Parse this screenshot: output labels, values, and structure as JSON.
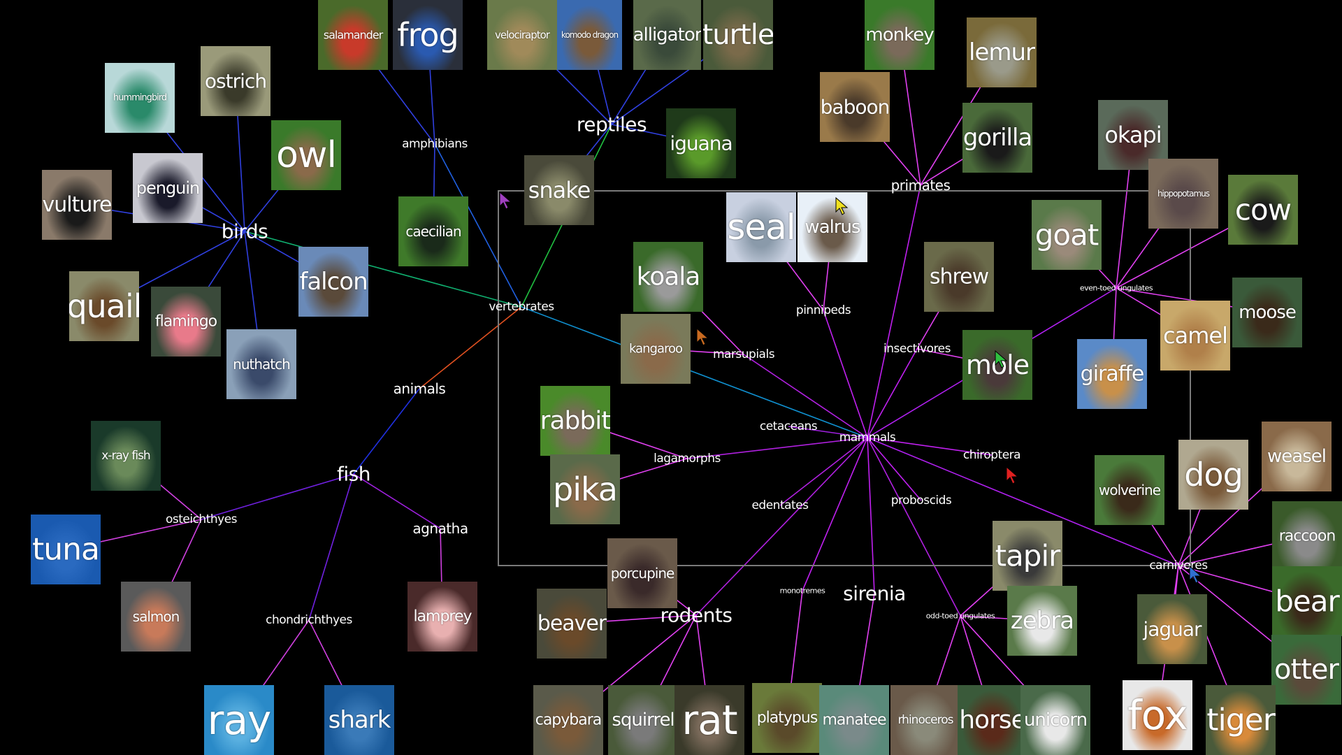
{
  "diagram": {
    "colors": {
      "background": "#000000",
      "label": "#ffffff",
      "frame": "#7a7a7a"
    },
    "labels": [
      {
        "id": "animals",
        "text": "animals",
        "size": "mid"
      },
      {
        "id": "vertebrates",
        "text": "vertebrates",
        "size": "small"
      },
      {
        "id": "birds",
        "text": "birds",
        "size": "major"
      },
      {
        "id": "amphibians",
        "text": "amphibians",
        "size": "small"
      },
      {
        "id": "reptiles",
        "text": "reptiles",
        "size": "major"
      },
      {
        "id": "fish",
        "text": "fish",
        "size": "major"
      },
      {
        "id": "osteichthyes",
        "text": "osteichthyes",
        "size": "small"
      },
      {
        "id": "chondrichthyes",
        "text": "chondrichthyes",
        "size": "small"
      },
      {
        "id": "agnatha",
        "text": "agnatha",
        "size": "mid"
      },
      {
        "id": "mammals",
        "text": "mammals",
        "size": "small"
      },
      {
        "id": "primates",
        "text": "primates",
        "size": "mid"
      },
      {
        "id": "pinnipeds",
        "text": "pinnipeds",
        "size": "small"
      },
      {
        "id": "marsupials",
        "text": "marsupials",
        "size": "small"
      },
      {
        "id": "insectivores",
        "text": "insectivores",
        "size": "small"
      },
      {
        "id": "even-toed",
        "text": "even-toed ungulates",
        "size": "tiny"
      },
      {
        "id": "cetaceans",
        "text": "cetaceans",
        "size": "small"
      },
      {
        "id": "lagamorphs",
        "text": "lagamorphs",
        "size": "small"
      },
      {
        "id": "chiroptera",
        "text": "chiroptera",
        "size": "small"
      },
      {
        "id": "edentates",
        "text": "edentates",
        "size": "small"
      },
      {
        "id": "proboscids",
        "text": "proboscids",
        "size": "small"
      },
      {
        "id": "rodents",
        "text": "rodents",
        "size": "major"
      },
      {
        "id": "monotremes",
        "text": "monotremes",
        "size": "tiny"
      },
      {
        "id": "sirenia",
        "text": "sirenia",
        "size": "major"
      },
      {
        "id": "odd-toed",
        "text": "odd-toed ungulates",
        "size": "tiny"
      },
      {
        "id": "carnivores",
        "text": "carnivores",
        "size": "small"
      }
    ],
    "nodes": [
      {
        "id": "salamander",
        "text": "salamander",
        "bg": "#4a6a2a",
        "fg": "#c83a2a",
        "parent": "amphibians"
      },
      {
        "id": "frog",
        "text": "frog",
        "bg": "#2a2f3a",
        "fg": "#2a5ab0",
        "parent": "amphibians"
      },
      {
        "id": "caecilian",
        "text": "caecilian",
        "bg": "#3f7a2a",
        "fg": "#1a2a1a",
        "parent": "amphibians"
      },
      {
        "id": "velociraptor",
        "text": "velociraptor",
        "bg": "#6a7a4a",
        "fg": "#a08a5a",
        "parent": "reptiles"
      },
      {
        "id": "komodo",
        "text": "komodo dragon",
        "bg": "#3a6ab0",
        "fg": "#7a5a3a",
        "parent": "reptiles"
      },
      {
        "id": "alligator",
        "text": "alligator",
        "bg": "#5a6a4a",
        "fg": "#3a4a3a",
        "parent": "reptiles"
      },
      {
        "id": "turtle",
        "text": "turtle",
        "bg": "#4a5a3a",
        "fg": "#7a6a4a",
        "parent": "reptiles"
      },
      {
        "id": "iguana",
        "text": "iguana",
        "bg": "#1f3a1a",
        "fg": "#5a9a2a",
        "parent": "reptiles"
      },
      {
        "id": "snake",
        "text": "snake",
        "bg": "#4a4a3a",
        "fg": "#8a8a6a",
        "parent": "reptiles"
      },
      {
        "id": "hummingbird",
        "text": "hummingbird",
        "bg": "#b8d8d8",
        "fg": "#2a8a6a",
        "parent": "birds"
      },
      {
        "id": "ostrich",
        "text": "ostrich",
        "bg": "#9a9a7a",
        "fg": "#3a3a2a",
        "parent": "birds"
      },
      {
        "id": "owl",
        "text": "owl",
        "bg": "#3a7a2a",
        "fg": "#8a6a4a",
        "parent": "birds"
      },
      {
        "id": "vulture",
        "text": "vulture",
        "bg": "#8a7a6a",
        "fg": "#1a1a1a",
        "parent": "birds"
      },
      {
        "id": "penguin",
        "text": "penguin",
        "bg": "#c8c8d0",
        "fg": "#1a1a2a",
        "parent": "birds"
      },
      {
        "id": "falcon",
        "text": "falcon",
        "bg": "#6a8ab8",
        "fg": "#5a4a3a",
        "parent": "birds"
      },
      {
        "id": "quail",
        "text": "quail",
        "bg": "#8a8a6a",
        "fg": "#6a4a2a",
        "parent": "birds"
      },
      {
        "id": "flamingo",
        "text": "flamingo",
        "bg": "#3a4a3a",
        "fg": "#e87a8a",
        "parent": "birds"
      },
      {
        "id": "nuthatch",
        "text": "nuthatch",
        "bg": "#8aa0b8",
        "fg": "#3a4a6a",
        "parent": "birds"
      },
      {
        "id": "xray",
        "text": "x-ray fish",
        "bg": "#1a3a2a",
        "fg": "#6a8a5a",
        "parent": "osteichthyes"
      },
      {
        "id": "tuna",
        "text": "tuna",
        "bg": "#1a5ab0",
        "fg": "#2a6ac0",
        "parent": "osteichthyes"
      },
      {
        "id": "salmon",
        "text": "salmon",
        "bg": "#5a5a5a",
        "fg": "#c87a5a",
        "parent": "osteichthyes"
      },
      {
        "id": "lamprey",
        "text": "lamprey",
        "bg": "#4a2a2a",
        "fg": "#e8b0b0",
        "parent": "agnatha"
      },
      {
        "id": "ray",
        "text": "ray",
        "bg": "#2a8ac8",
        "fg": "#5ab0e0",
        "parent": "chondrichthyes"
      },
      {
        "id": "shark",
        "text": "shark",
        "bg": "#1a5a9a",
        "fg": "#3a7ab8",
        "parent": "chondrichthyes"
      },
      {
        "id": "monkey",
        "text": "monkey",
        "bg": "#3a7a2a",
        "fg": "#7a6a5a",
        "parent": "primates"
      },
      {
        "id": "lemur",
        "text": "lemur",
        "bg": "#7a6a3a",
        "fg": "#9a9a8a",
        "parent": "primates"
      },
      {
        "id": "baboon",
        "text": "baboon",
        "bg": "#9a7a4a",
        "fg": "#4a3a2a",
        "parent": "primates"
      },
      {
        "id": "gorilla",
        "text": "gorilla",
        "bg": "#4a6a3a",
        "fg": "#1a1a1a",
        "parent": "primates"
      },
      {
        "id": "seal",
        "text": "seal",
        "bg": "#c8d0e0",
        "fg": "#8a9aaa",
        "parent": "pinnipeds"
      },
      {
        "id": "walrus",
        "text": "walrus",
        "bg": "#e8f0f8",
        "fg": "#6a5a4a",
        "parent": "pinnipeds"
      },
      {
        "id": "koala",
        "text": "koala",
        "bg": "#3a6a2a",
        "fg": "#9a9a9a",
        "parent": "marsupials"
      },
      {
        "id": "kangaroo",
        "text": "kangaroo",
        "bg": "#7a7a5a",
        "fg": "#8a6a4a",
        "parent": "marsupials"
      },
      {
        "id": "shrew",
        "text": "shrew",
        "bg": "#6a6a4a",
        "fg": "#4a3a2a",
        "parent": "insectivores"
      },
      {
        "id": "mole",
        "text": "mole",
        "bg": "#3a6a2a",
        "fg": "#4a3a3a",
        "parent": "insectivores"
      },
      {
        "id": "okapi",
        "text": "okapi",
        "bg": "#5a6a5a",
        "fg": "#4a2a2a",
        "parent": "even-toed"
      },
      {
        "id": "hippo",
        "text": "hippopotamus",
        "bg": "#7a6a5a",
        "fg": "#5a4a4a",
        "parent": "even-toed"
      },
      {
        "id": "cow",
        "text": "cow",
        "bg": "#5a7a3a",
        "fg": "#1a1a1a",
        "parent": "even-toed"
      },
      {
        "id": "goat",
        "text": "goat",
        "bg": "#5a7a4a",
        "fg": "#9a8a7a",
        "parent": "even-toed"
      },
      {
        "id": "moose",
        "text": "moose",
        "bg": "#3a5a3a",
        "fg": "#3a2a1a",
        "parent": "even-toed"
      },
      {
        "id": "camel",
        "text": "camel",
        "bg": "#c8a86a",
        "fg": "#b0804a",
        "parent": "even-toed"
      },
      {
        "id": "giraffe",
        "text": "giraffe",
        "bg": "#5a8ac8",
        "fg": "#c8904a",
        "parent": "even-toed"
      },
      {
        "id": "rabbit",
        "text": "rabbit",
        "bg": "#4a8a2a",
        "fg": "#7a6a5a",
        "parent": "lagamorphs"
      },
      {
        "id": "pika",
        "text": "pika",
        "bg": "#5a6a4a",
        "fg": "#8a6a4a",
        "parent": "lagamorphs"
      },
      {
        "id": "porcupine",
        "text": "porcupine",
        "bg": "#6a5a4a",
        "fg": "#3a2a2a",
        "parent": "rodents"
      },
      {
        "id": "beaver",
        "text": "beaver",
        "bg": "#4a4a3a",
        "fg": "#6a4a2a",
        "parent": "rodents"
      },
      {
        "id": "capybara",
        "text": "capybara",
        "bg": "#5a5a4a",
        "fg": "#7a5a3a",
        "parent": "rodents"
      },
      {
        "id": "squirrel",
        "text": "squirrel",
        "bg": "#4a5a3a",
        "fg": "#7a7a7a",
        "parent": "rodents"
      },
      {
        "id": "rat",
        "text": "rat",
        "bg": "#3a3a2a",
        "fg": "#7a6a5a",
        "parent": "rodents"
      },
      {
        "id": "platypus",
        "text": "platypus",
        "bg": "#6a7a3a",
        "fg": "#5a4a2a",
        "parent": "monotremes"
      },
      {
        "id": "manatee",
        "text": "manatee",
        "bg": "#5a8a7a",
        "fg": "#7a8a8a",
        "parent": "sirenia"
      },
      {
        "id": "rhinoceros",
        "text": "rhinoceros",
        "bg": "#6a5a4a",
        "fg": "#8a8a7a",
        "parent": "odd-toed"
      },
      {
        "id": "horse",
        "text": "horse",
        "bg": "#3a5a3a",
        "fg": "#5a2a1a",
        "parent": "odd-toed"
      },
      {
        "id": "unicorn",
        "text": "unicorn",
        "bg": "#4a6a4a",
        "fg": "#e8e8e8",
        "parent": "odd-toed"
      },
      {
        "id": "tapir",
        "text": "tapir",
        "bg": "#8a8a6a",
        "fg": "#3a3a3a",
        "parent": "odd-toed"
      },
      {
        "id": "zebra",
        "text": "zebra",
        "bg": "#5a7a4a",
        "fg": "#e8e8e8",
        "parent": "odd-toed"
      },
      {
        "id": "wolverine",
        "text": "wolverine",
        "bg": "#4a7a3a",
        "fg": "#3a2a1a",
        "parent": "carnivores"
      },
      {
        "id": "dog",
        "text": "dog",
        "bg": "#b0a890",
        "fg": "#7a5a3a",
        "parent": "carnivores"
      },
      {
        "id": "weasel",
        "text": "weasel",
        "bg": "#8a6a4a",
        "fg": "#c8b89a",
        "parent": "carnivores"
      },
      {
        "id": "raccoon",
        "text": "raccoon",
        "bg": "#3a5a2a",
        "fg": "#8a8a8a",
        "parent": "carnivores"
      },
      {
        "id": "bear",
        "text": "bear",
        "bg": "#3a6a2a",
        "fg": "#3a2a1a",
        "parent": "carnivores"
      },
      {
        "id": "jaguar",
        "text": "jaguar",
        "bg": "#4a5a3a",
        "fg": "#c8904a",
        "parent": "carnivores"
      },
      {
        "id": "otter",
        "text": "otter",
        "bg": "#3a6a3a",
        "fg": "#5a4a3a",
        "parent": "carnivores"
      },
      {
        "id": "fox",
        "text": "fox",
        "bg": "#e8e8e8",
        "fg": "#c86a2a",
        "parent": "carnivores"
      },
      {
        "id": "tiger",
        "text": "tiger",
        "bg": "#4a5a3a",
        "fg": "#d88a3a",
        "parent": "carnivores"
      }
    ],
    "cursors": [
      {
        "id": "purple",
        "color": "#a040c0"
      },
      {
        "id": "yellow",
        "color": "#f0e020"
      },
      {
        "id": "orange",
        "color": "#c86a20"
      },
      {
        "id": "green",
        "color": "#30c040"
      },
      {
        "id": "red",
        "color": "#e02020"
      },
      {
        "id": "blue",
        "color": "#3070d0"
      }
    ]
  }
}
